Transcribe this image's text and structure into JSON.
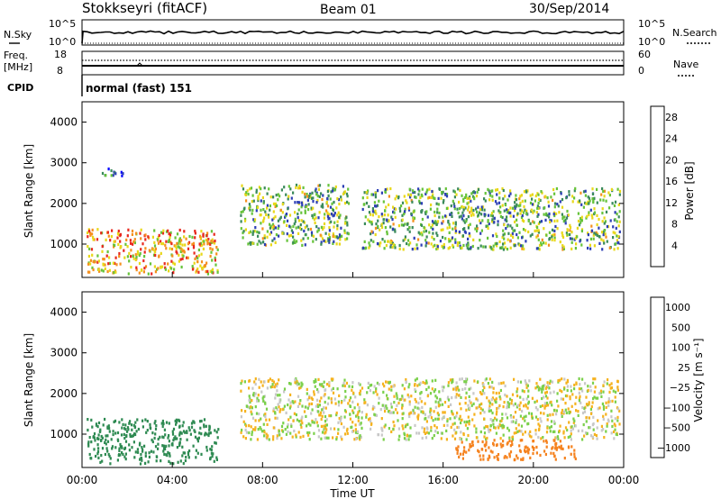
{
  "header": {
    "station": "Stokkseyri (fitACF)",
    "beam": "Beam 01",
    "date": "30/Sep/2014"
  },
  "nsky_panel": {
    "left_label": "N.Sky",
    "right_label": "N.Search",
    "left_ticks": [
      "10^5",
      "10^0"
    ],
    "right_ticks": [
      "10^5",
      "10^0"
    ]
  },
  "freq_panel": {
    "left_label_1": "Freq.",
    "left_label_2": "[MHz]",
    "right_label": "Nave",
    "left_ticks": [
      "18",
      "8"
    ],
    "right_ticks": [
      "60",
      "0"
    ]
  },
  "cpid": {
    "label": "CPID",
    "value": "normal (fast) 151"
  },
  "colors": {
    "power_scale": [
      "#0000ff",
      "#2d3fb5",
      "#3a8a5a",
      "#66c33a",
      "#e8d81a",
      "#f5901e",
      "#e8281e"
    ],
    "velocity_scale": [
      "#d81414",
      "#f5821e",
      "#f5b21e",
      "#c8c8c8",
      "#7ad04a",
      "#2e8a52",
      "#2850b4"
    ]
  },
  "chart_data": [
    {
      "type": "heatmap",
      "title": "",
      "xlabel": "Time UT",
      "ylabel": "Slant Range [km]",
      "x_ticks": [
        "00:00",
        "04:00",
        "08:00",
        "12:00",
        "16:00",
        "20:00",
        "00:00"
      ],
      "y_ticks": [
        "1000",
        "2000",
        "3000",
        "4000"
      ],
      "xlim_hours": [
        0,
        24
      ],
      "ylim_km": [
        180,
        4500
      ],
      "colorbar": {
        "label": "Power [dB]",
        "ticks": [
          "4",
          "8",
          "12",
          "16",
          "20",
          "24",
          "28"
        ],
        "range": [
          0,
          30
        ]
      },
      "features": [
        {
          "t_start_h": 0.2,
          "t_end_h": 6.0,
          "range_km": [
            300,
            1400
          ],
          "level_db": 22
        },
        {
          "t_start_h": 7.0,
          "t_end_h": 11.8,
          "range_km": [
            1000,
            2500
          ],
          "level_db": 14
        },
        {
          "t_start_h": 12.4,
          "t_end_h": 23.8,
          "range_km": [
            900,
            2400
          ],
          "level_db": 14
        },
        {
          "t_start_h": 0.8,
          "t_end_h": 2.0,
          "range_km": [
            2700,
            2900
          ],
          "level_db": 6
        }
      ]
    },
    {
      "type": "heatmap",
      "title": "",
      "xlabel": "Time UT",
      "ylabel": "Slant Range [km]",
      "x_ticks": [
        "00:00",
        "04:00",
        "08:00",
        "12:00",
        "16:00",
        "20:00",
        "00:00"
      ],
      "y_ticks": [
        "1000",
        "2000",
        "3000",
        "4000"
      ],
      "xlim_hours": [
        0,
        24
      ],
      "ylim_km": [
        180,
        4500
      ],
      "colorbar": {
        "label": "Velocity [m s⁻¹]",
        "ticks": [
          "1000",
          "500",
          "100",
          "25",
          "−25",
          "−100",
          "−500",
          "−1000"
        ]
      },
      "features": [
        {
          "t_start_h": 0.2,
          "t_end_h": 6.0,
          "range_km": [
            300,
            1400
          ],
          "velocity_ms": 300
        },
        {
          "t_start_h": 7.0,
          "t_end_h": 23.8,
          "range_km": [
            900,
            2400
          ],
          "velocity_ms": 0
        },
        {
          "t_start_h": 16.5,
          "t_end_h": 22.0,
          "range_km": [
            400,
            900
          ],
          "velocity_ms": -300
        }
      ]
    }
  ]
}
